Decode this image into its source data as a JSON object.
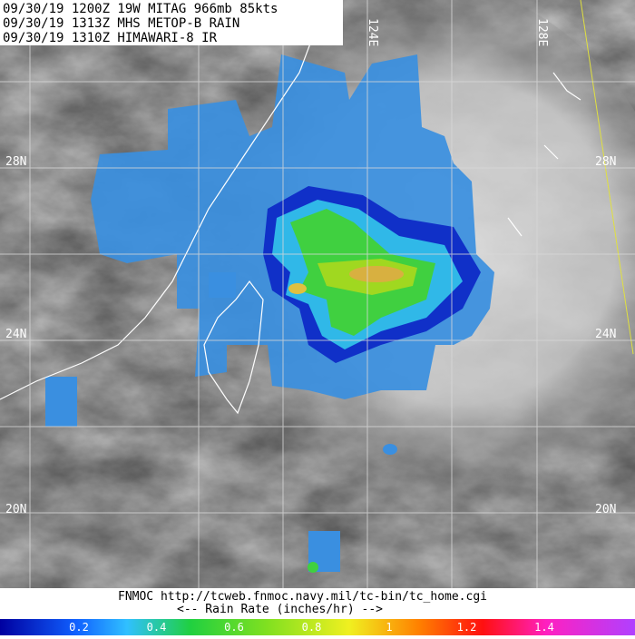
{
  "header": {
    "lines": [
      "09/30/19 1200Z  19W MITAG 966mb 85kts",
      "09/30/19 1313Z  MHS METOP-B RAIN",
      "09/30/19 1310Z  HIMAWARI-8 IR"
    ]
  },
  "grid": {
    "longitude_labels": [
      "124E",
      "128E"
    ],
    "latitude_labels": [
      "28N",
      "24N",
      "20N"
    ]
  },
  "footer": {
    "source": "FNMOC  http://tcweb.fnmoc.navy.mil/tc-bin/tc_home.cgi",
    "legend_title": "<--    Rain Rate (inches/hr)    -->"
  },
  "legend": {
    "ticks": [
      "0.2",
      "0.4",
      "0.6",
      "0.8",
      "1",
      "1.2",
      "1.4"
    ]
  }
}
